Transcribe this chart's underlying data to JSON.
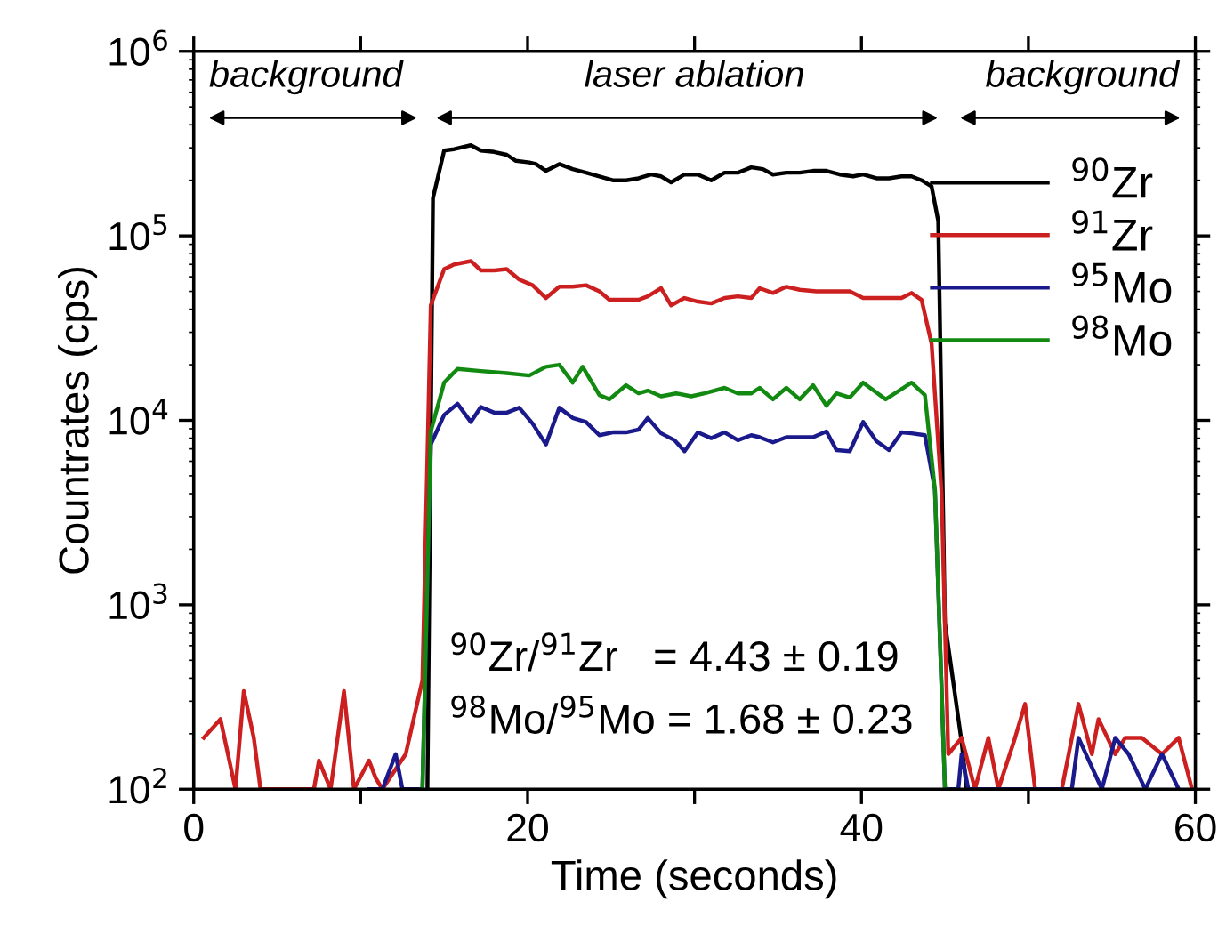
{
  "chart_data": {
    "type": "line",
    "xlabel": "Time (seconds)",
    "ylabel": "Countrates (cps)",
    "log": "y",
    "xlim": [
      0,
      60
    ],
    "ylim": [
      100,
      1000000
    ],
    "xticks": [
      0,
      {
        "value": 10,
        "label": null
      },
      20,
      {
        "value": 30,
        "label": null
      },
      40,
      {
        "value": 50,
        "label": null
      },
      60
    ],
    "yticks": [
      {
        "value": 100,
        "label": "10$^{2}$"
      },
      {
        "value": 1000,
        "label": "10$^{3}$"
      },
      {
        "value": 10000,
        "label": "10$^{4}$"
      },
      {
        "value": 100000,
        "label": "10$^{5}$"
      },
      {
        "value": 1000000,
        "label": "10$^{6}$"
      }
    ],
    "grid": false,
    "legend": "top right",
    "line_style": "solid",
    "marker": "none",
    "annotations": [
      "background",
      "laser ablation",
      "background",
      "$^{90}$Zr/$^{91}$Zr   = 4.43 ± 0.19",
      "$^{98}$Mo/$^{95}$Mo = 1.68 ± 0.23"
    ],
    "series": [
      {
        "name": "$^{90}$Zr",
        "color": "#000000",
        "x": [
          14.0,
          14.33,
          15.0,
          15.6,
          16.6,
          17.2,
          18.0,
          18.75,
          19.3,
          20.1,
          20.5,
          21.1,
          21.9,
          22.7,
          23.5,
          24.3,
          25.1,
          25.9,
          26.65,
          27.4,
          28.0,
          28.6,
          29.4,
          30.2,
          31.0,
          31.8,
          32.6,
          33.4,
          34.1,
          34.7,
          35.5,
          36.3,
          37.1,
          37.9,
          38.7,
          39.5,
          40.1,
          40.9,
          41.65,
          42.4,
          43.0,
          43.6,
          44.2,
          44.6,
          45.0,
          46.0,
          46.3
        ],
        "values": [
          100,
          160000,
          290000,
          295000,
          310000,
          290000,
          285000,
          275000,
          255000,
          250000,
          245000,
          225000,
          245000,
          230000,
          220000,
          210000,
          200000,
          200000,
          205000,
          215000,
          210000,
          195000,
          215000,
          215000,
          200000,
          220000,
          220000,
          235000,
          230000,
          215000,
          220000,
          220000,
          225000,
          225000,
          215000,
          210000,
          215000,
          205000,
          205000,
          210000,
          210000,
          200000,
          185000,
          120000,
          800,
          180,
          100
        ]
      },
      {
        "name": "$^{91}$Zr",
        "color": "#cc2020",
        "x": [
          0.6,
          1.6,
          2.5,
          3.0,
          3.6,
          4.0,
          7.2,
          7.5,
          8.2,
          9.0,
          9.6,
          10.5,
          10.9,
          11.3,
          12.7,
          13.7,
          14.2,
          15.0,
          15.6,
          16.6,
          17.2,
          18.0,
          18.75,
          19.5,
          20.3,
          21.1,
          21.9,
          22.7,
          23.5,
          24.3,
          24.9,
          25.9,
          26.65,
          27.2,
          28.0,
          28.6,
          29.4,
          30.2,
          31.0,
          31.8,
          32.6,
          33.4,
          33.9,
          34.7,
          35.5,
          36.3,
          37.3,
          38.5,
          39.3,
          40.1,
          40.9,
          41.65,
          42.4,
          43.0,
          43.6,
          44.2,
          44.8,
          45.2,
          46.0,
          46.8,
          47.6,
          48.2,
          49.2,
          49.8,
          50.4,
          52.0,
          53.0,
          53.8,
          54.2,
          55.2,
          55.8,
          56.8,
          58.0,
          59.0,
          59.8
        ],
        "values": [
          190,
          240,
          100,
          340,
          190,
          100,
          100,
          143,
          100,
          340,
          100,
          143,
          115,
          100,
          155,
          390,
          42000,
          66000,
          70000,
          73000,
          65000,
          65000,
          66000,
          58000,
          54000,
          46000,
          53000,
          53000,
          54000,
          50000,
          45000,
          45000,
          45000,
          47000,
          52000,
          42000,
          46000,
          44000,
          43000,
          46000,
          47000,
          46000,
          52000,
          49000,
          53000,
          51000,
          50000,
          50000,
          50000,
          46000,
          46000,
          46000,
          46000,
          49000,
          45000,
          26000,
          4000,
          155,
          190,
          100,
          190,
          100,
          190,
          290,
          100,
          100,
          290,
          155,
          240,
          155,
          190,
          190,
          155,
          190,
          100
        ]
      },
      {
        "name": "$^{95}$Mo",
        "color": "#1a1a8c",
        "x": [
          10.5,
          11.3,
          12.1,
          12.5,
          13.7,
          14.2,
          15.0,
          15.8,
          16.6,
          17.2,
          18.0,
          18.75,
          19.5,
          20.3,
          21.1,
          21.9,
          22.7,
          23.5,
          24.3,
          25.1,
          25.9,
          26.65,
          27.2,
          28.0,
          28.8,
          29.4,
          30.2,
          31.0,
          31.8,
          32.6,
          33.4,
          33.9,
          34.7,
          35.5,
          36.3,
          37.1,
          37.9,
          38.5,
          39.3,
          40.1,
          40.9,
          41.65,
          42.4,
          43.0,
          43.8,
          44.4,
          45.0,
          45.8,
          46.0,
          46.4,
          52.6,
          53.0,
          54.4,
          55.2,
          56.0,
          57.0,
          58.0,
          59.0
        ],
        "values": [
          100,
          100,
          155,
          100,
          100,
          7400,
          10700,
          12300,
          9800,
          11800,
          11000,
          11000,
          11700,
          9600,
          7400,
          11700,
          10300,
          9800,
          8300,
          8600,
          8600,
          8900,
          10300,
          8500,
          7800,
          6800,
          8600,
          8000,
          8600,
          7800,
          8300,
          8100,
          7600,
          8100,
          8100,
          8100,
          8700,
          6900,
          6800,
          9800,
          7700,
          6900,
          8600,
          8500,
          8300,
          4200,
          100,
          100,
          155,
          100,
          100,
          190,
          100,
          190,
          155,
          100,
          155,
          100
        ]
      },
      {
        "name": "$^{98}$Mo",
        "color": "#128a12",
        "x": [
          13.7,
          14.2,
          15.0,
          15.8,
          17.2,
          18.75,
          20.1,
          21.1,
          21.9,
          22.7,
          23.3,
          24.3,
          24.9,
          25.9,
          26.65,
          27.2,
          28.0,
          28.9,
          29.8,
          30.6,
          31.8,
          32.6,
          33.4,
          33.9,
          34.7,
          35.5,
          36.3,
          37.1,
          37.9,
          38.5,
          39.3,
          40.1,
          41.45,
          43.0,
          43.8,
          44.4,
          45.0
        ],
        "values": [
          100,
          8700,
          16000,
          19000,
          18500,
          18000,
          17500,
          19500,
          20000,
          16000,
          19500,
          13700,
          13000,
          15500,
          14000,
          14500,
          13500,
          14000,
          13500,
          14000,
          15000,
          14000,
          14000,
          15000,
          13000,
          15000,
          13000,
          15500,
          12000,
          14000,
          13300,
          16000,
          13000,
          16000,
          13700,
          4200,
          100
        ]
      }
    ]
  }
}
